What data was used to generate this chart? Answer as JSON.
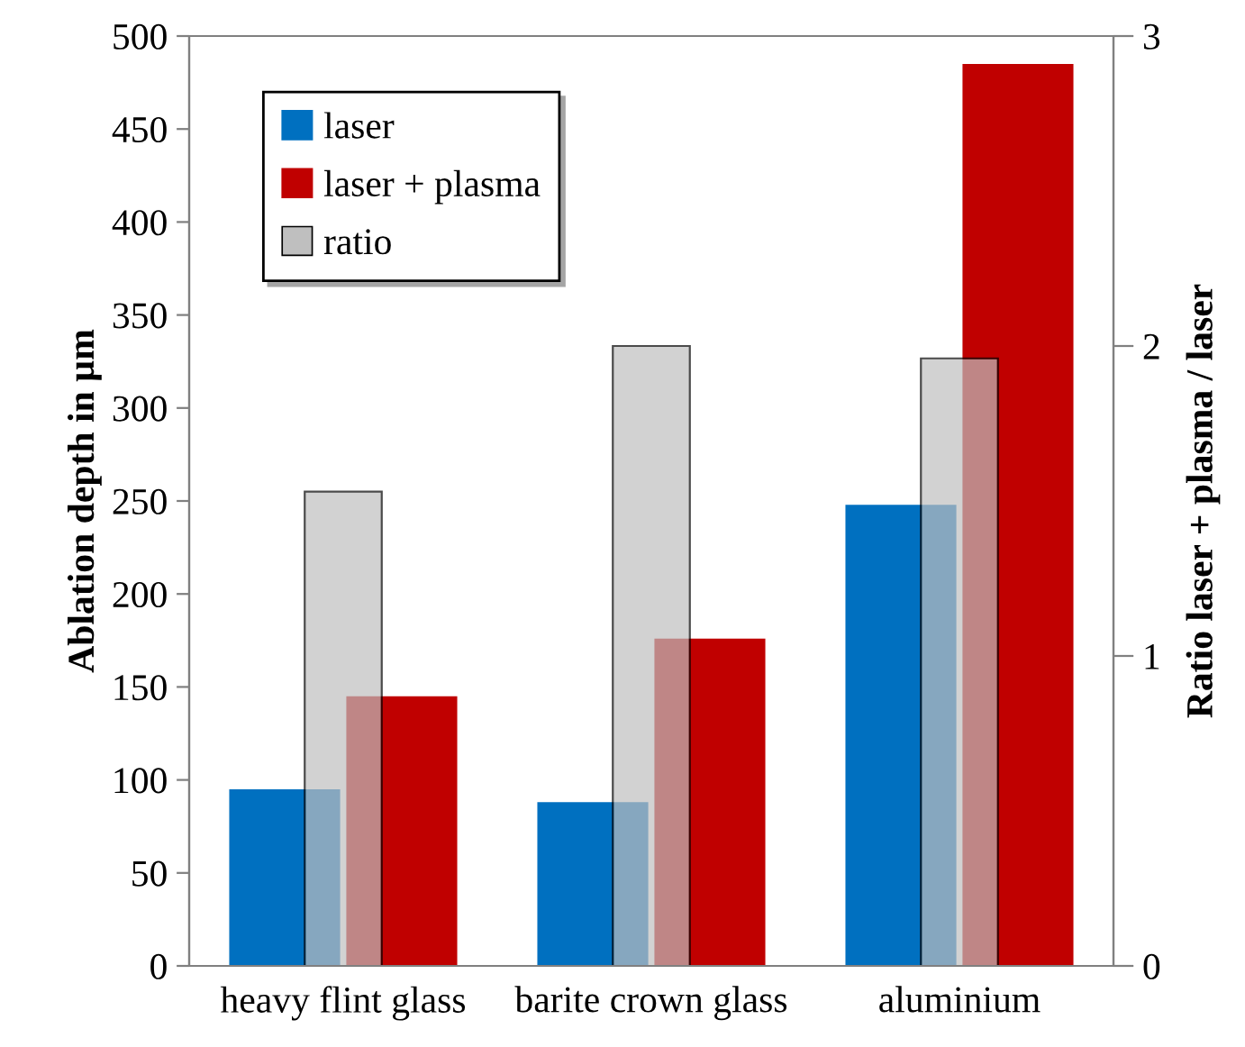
{
  "chart_data": {
    "type": "bar",
    "categories": [
      "heavy flint glass",
      "barite crown glass",
      "aluminium"
    ],
    "series": [
      {
        "name": "laser",
        "color": "#0070c0",
        "values": [
          95,
          88,
          248
        ]
      },
      {
        "name": "laser + plasma",
        "color": "#c00000",
        "values": [
          145,
          176,
          485
        ]
      },
      {
        "name": "ratio",
        "color": "#bfbfbf",
        "values": [
          1.53,
          2.0,
          1.96
        ],
        "axis": "y2"
      }
    ],
    "ylabel": "Ablation depth in µm",
    "y2label": "Ratio laser + plasma / laser",
    "ylim": [
      0,
      500
    ],
    "yticks": [
      0,
      50,
      100,
      150,
      200,
      250,
      300,
      350,
      400,
      450,
      500
    ],
    "y2lim": [
      0,
      3
    ],
    "y2ticks": [
      0,
      1,
      2,
      3
    ],
    "legend": "top left",
    "grid": false
  }
}
